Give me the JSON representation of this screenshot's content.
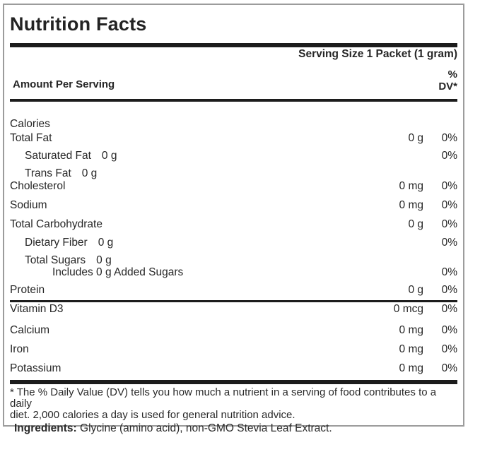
{
  "title": "Nutrition Facts",
  "serving_size": "Serving Size 1 Packet (1 gram)",
  "column_header": {
    "amount_per_serving": "Amount Per Serving",
    "dv_line1": "%",
    "dv_line2": "DV*"
  },
  "rows": [
    {
      "label": "Calories",
      "indent": 0,
      "mt": 24
    },
    {
      "label": "Total Fat",
      "indent": 0,
      "amount": "0 g",
      "dv": "0%",
      "mt": 4
    },
    {
      "label": "Saturated Fat",
      "indent": 1,
      "inline_amount": "0 g",
      "dv": "0%",
      "mt": 9
    },
    {
      "label": "Trans Fat",
      "indent": 1,
      "inline_amount": "0 g",
      "mt": 9
    },
    {
      "label": "Cholesterol",
      "indent": 0,
      "amount": "0 mg",
      "dv": "0%",
      "mt": 2
    },
    {
      "label": "Sodium",
      "indent": 0,
      "amount": "0 mg",
      "dv": "0%",
      "mt": 11
    },
    {
      "label": "Total Carbohydrate",
      "indent": 0,
      "amount": "0 g",
      "dv": "0%",
      "mt": 11
    },
    {
      "label": "Dietary Fiber",
      "indent": 1,
      "inline_amount": "0 g",
      "dv": "0%",
      "mt": 10
    },
    {
      "label": "Total Sugars",
      "indent": 1,
      "inline_amount": "0 g",
      "mt": 9
    },
    {
      "label": "Includes 0 g Added Sugars",
      "indent": 2,
      "dv": "0%",
      "mt": 1
    },
    {
      "label": "Protein",
      "indent": 0,
      "amount": "0 g",
      "dv": "0%",
      "mt": 9
    },
    {
      "type": "divider",
      "mt": 6
    },
    {
      "label": "Vitamin D3",
      "indent": 0,
      "amount": "0 mcg",
      "dv": "0%",
      "mt": 2
    },
    {
      "label": "Calcium",
      "indent": 0,
      "amount": "0 mg",
      "dv": "0%",
      "mt": 14
    },
    {
      "label": "Iron",
      "indent": 0,
      "amount": "0 mg",
      "dv": "0%",
      "mt": 11
    },
    {
      "label": "Potassium",
      "indent": 0,
      "amount": "0 mg",
      "dv": "0%",
      "mt": 11
    }
  ],
  "footnote": {
    "line1": "* The % Daily Value (DV) tells you how much a nutrient in a serving of food contributes to a daily",
    "line2": "diet. 2,000 calories a day is used for general nutrition advice."
  },
  "ingredients": {
    "label": "Ingredients:",
    "text": " Glycine (amino acid), non-GMO Stevia Leaf Extract."
  },
  "colors": {
    "bar": "#1c1c1c",
    "border": "#9c9c9c",
    "text": "#262626"
  }
}
